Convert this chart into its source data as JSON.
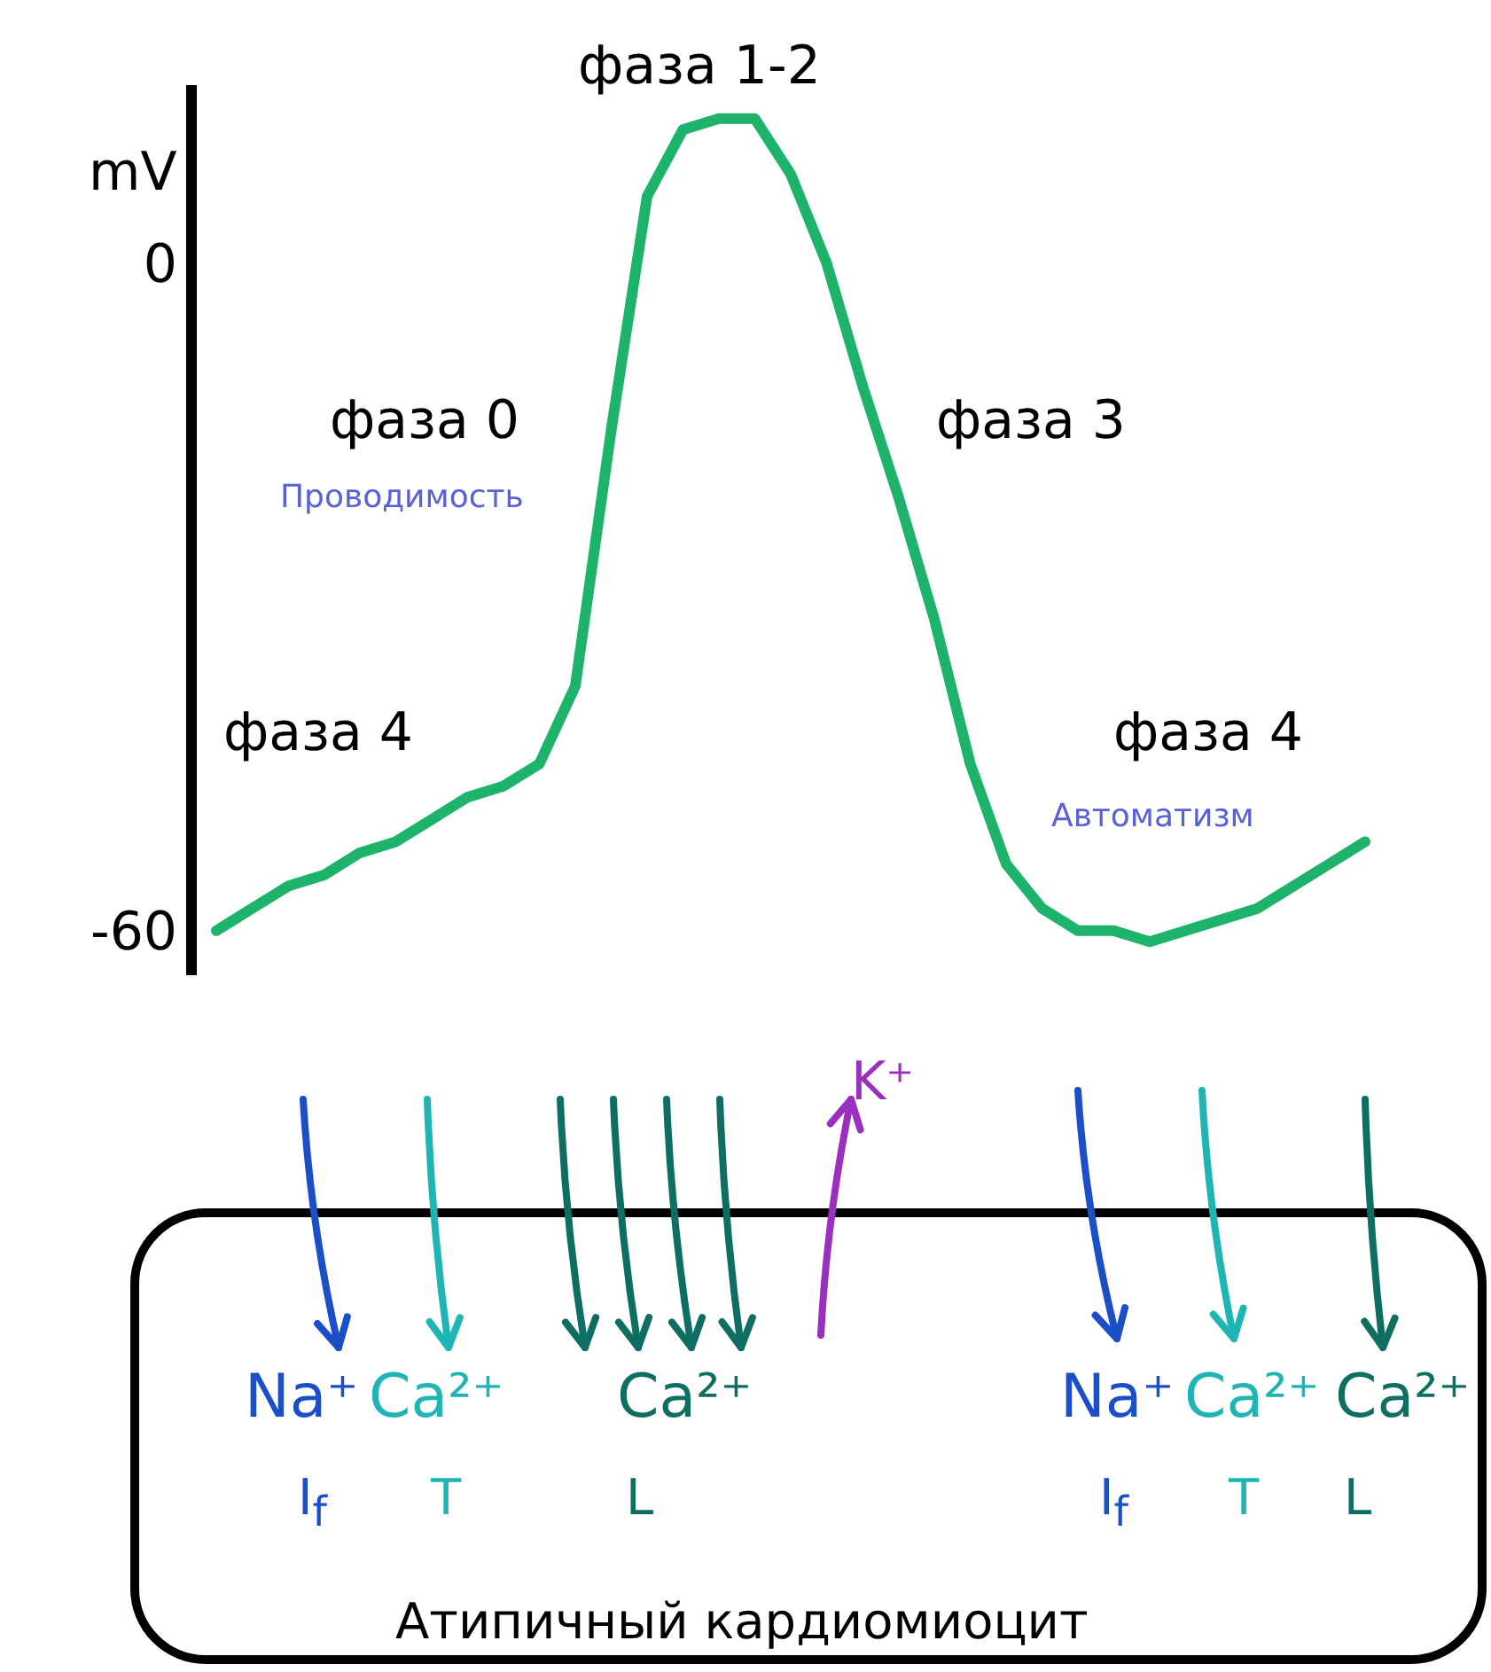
{
  "chart_data": {
    "type": "line",
    "ylabel": "mV",
    "categories": [
      null,
      null,
      null,
      null,
      null,
      null,
      null,
      null,
      null,
      null,
      null,
      null,
      null,
      null,
      null,
      null,
      null,
      null,
      null,
      null,
      null,
      null,
      null,
      null,
      null,
      null,
      null,
      null,
      null,
      null,
      null,
      null,
      null
    ],
    "series": [
      {
        "color": "#1db36b",
        "values": [
          -60,
          -58,
          -56,
          -55,
          -53,
          -52,
          -50,
          -48,
          -47,
          -45,
          -38,
          -15,
          6,
          12,
          13,
          13,
          8,
          0,
          -11,
          -21,
          -32,
          -45,
          -54,
          -58,
          -60,
          -60,
          -61,
          -60,
          -59,
          -58,
          -56,
          -54,
          -52
        ]
      }
    ],
    "ylim": [
      -64,
      16
    ],
    "yticks": [
      0,
      -60
    ],
    "annotations": [
      "фаза 1-2",
      "фаза 0",
      "Проводимость",
      "фаза 3",
      "фаза 4",
      "фаза 4",
      "Автоматизм",
      "K⁺",
      "Na⁺",
      "Ca²⁺",
      "Ca²⁺",
      "I$_{f}$",
      "T",
      "L",
      "Na⁺",
      "Ca²⁺",
      "Ca²⁺",
      "I$_{f}$",
      "T",
      "L",
      "Атипичный кардиомиоцит"
    ]
  }
}
